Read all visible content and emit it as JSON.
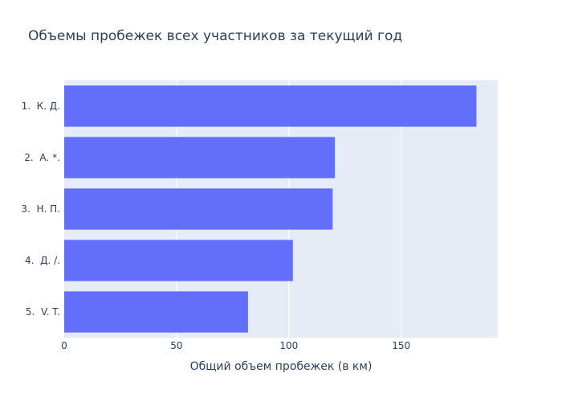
{
  "chart_data": {
    "type": "bar",
    "orientation": "horizontal",
    "title": "Объемы пробежек всех участников за текущий год",
    "xlabel": "Общий объем пробежек (в км)",
    "ylabel": "",
    "categories": [
      "1.  К. Д.",
      "2.  А. *.",
      "3.  Н. П.",
      "4.  Д. /.",
      "5.  V. T."
    ],
    "values": [
      183.5,
      120.5,
      119.5,
      101.8,
      81.8
    ],
    "xlim": [
      0,
      193
    ],
    "xticks": [
      0,
      50,
      100,
      150
    ],
    "grid": true,
    "legend": "none",
    "colors": {
      "bar": "#636efa",
      "plot_bg": "#e5ecf6",
      "grid": "#ffffff",
      "text": "#2a3f5f"
    }
  }
}
